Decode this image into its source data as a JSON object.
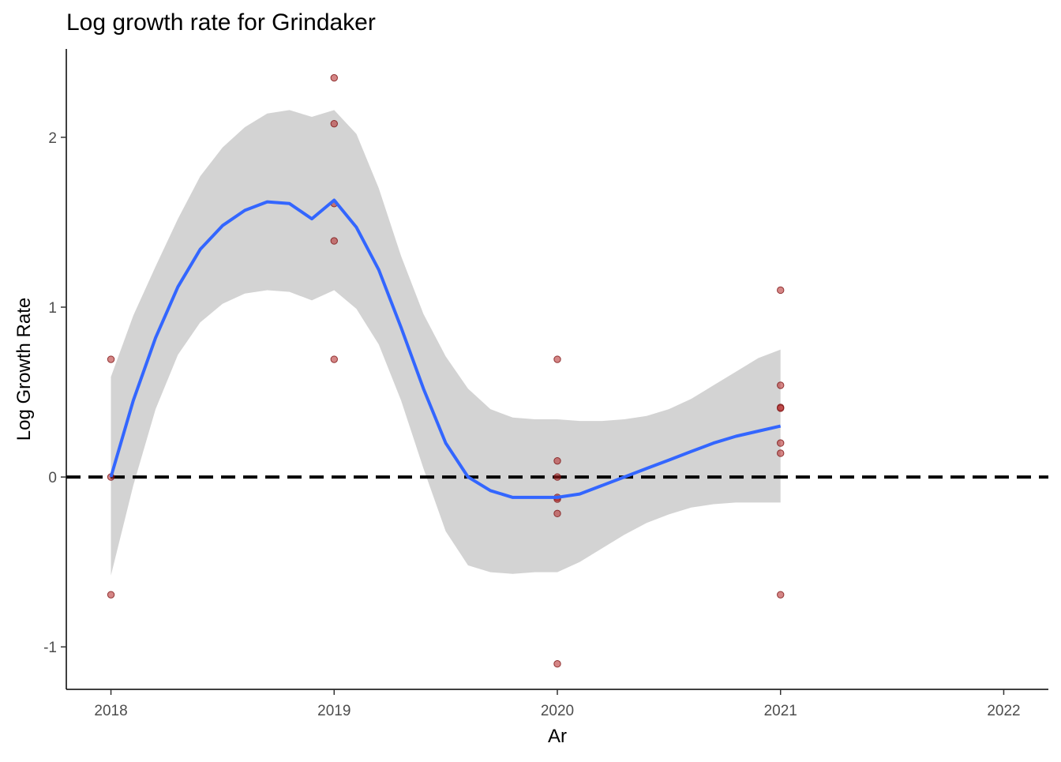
{
  "chart_data": {
    "type": "scatter",
    "title": "Log growth rate for Grindaker",
    "xlabel": "Ar",
    "ylabel": "Log Growth Rate",
    "xlim": [
      2017.8,
      2022.2
    ],
    "ylim": [
      -1.25,
      2.52
    ],
    "x_ticks": [
      2018,
      2019,
      2020,
      2021,
      2022
    ],
    "y_ticks": [
      -1,
      0,
      1,
      2
    ],
    "grid": false,
    "legend": "none",
    "reference_line": {
      "y": 0,
      "style": "dashed",
      "color": "#000000"
    },
    "colors": {
      "points": "#b22222",
      "smooth": "#3366ff",
      "band": "#d3d3d3"
    },
    "points": [
      {
        "x": 2018,
        "y": 0.693
      },
      {
        "x": 2018,
        "y": 0.0
      },
      {
        "x": 2018,
        "y": -0.693
      },
      {
        "x": 2019,
        "y": 2.35
      },
      {
        "x": 2019,
        "y": 2.08
      },
      {
        "x": 2019,
        "y": 1.61
      },
      {
        "x": 2019,
        "y": 1.39
      },
      {
        "x": 2019,
        "y": 0.693
      },
      {
        "x": 2020,
        "y": 0.693
      },
      {
        "x": 2020,
        "y": 0.095
      },
      {
        "x": 2020,
        "y": 0.0
      },
      {
        "x": 2020,
        "y": -0.12
      },
      {
        "x": 2020,
        "y": -0.13
      },
      {
        "x": 2020,
        "y": -0.215
      },
      {
        "x": 2020,
        "y": -1.1
      },
      {
        "x": 2021,
        "y": 1.1
      },
      {
        "x": 2021,
        "y": 0.54
      },
      {
        "x": 2021,
        "y": 0.41
      },
      {
        "x": 2021,
        "y": 0.405
      },
      {
        "x": 2021,
        "y": 0.2
      },
      {
        "x": 2021,
        "y": 0.14
      },
      {
        "x": 2021,
        "y": -0.693
      }
    ],
    "smooth": {
      "x": [
        2018.0,
        2018.1,
        2018.2,
        2018.3,
        2018.4,
        2018.5,
        2018.6,
        2018.7,
        2018.8,
        2018.9,
        2019.0,
        2019.1,
        2019.2,
        2019.3,
        2019.4,
        2019.5,
        2019.6,
        2019.7,
        2019.8,
        2019.9,
        2020.0,
        2020.1,
        2020.2,
        2020.3,
        2020.4,
        2020.5,
        2020.6,
        2020.7,
        2020.8,
        2020.9,
        2021.0
      ],
      "fit": [
        0.0,
        0.45,
        0.82,
        1.12,
        1.34,
        1.48,
        1.57,
        1.62,
        1.61,
        1.52,
        1.63,
        1.47,
        1.22,
        0.88,
        0.52,
        0.2,
        0.0,
        -0.08,
        -0.12,
        -0.12,
        -0.12,
        -0.1,
        -0.05,
        0.0,
        0.05,
        0.1,
        0.15,
        0.2,
        0.24,
        0.27,
        0.3
      ],
      "lower": [
        -0.58,
        -0.05,
        0.4,
        0.72,
        0.91,
        1.02,
        1.08,
        1.1,
        1.09,
        1.04,
        1.1,
        0.99,
        0.78,
        0.45,
        0.05,
        -0.32,
        -0.52,
        -0.56,
        -0.57,
        -0.56,
        -0.56,
        -0.5,
        -0.42,
        -0.34,
        -0.27,
        -0.22,
        -0.18,
        -0.16,
        -0.15,
        -0.15,
        -0.15
      ],
      "upper": [
        0.59,
        0.95,
        1.24,
        1.52,
        1.77,
        1.94,
        2.06,
        2.14,
        2.16,
        2.12,
        2.16,
        2.02,
        1.7,
        1.3,
        0.96,
        0.71,
        0.52,
        0.4,
        0.35,
        0.34,
        0.34,
        0.33,
        0.33,
        0.34,
        0.36,
        0.4,
        0.46,
        0.54,
        0.62,
        0.7,
        0.75
      ]
    }
  }
}
